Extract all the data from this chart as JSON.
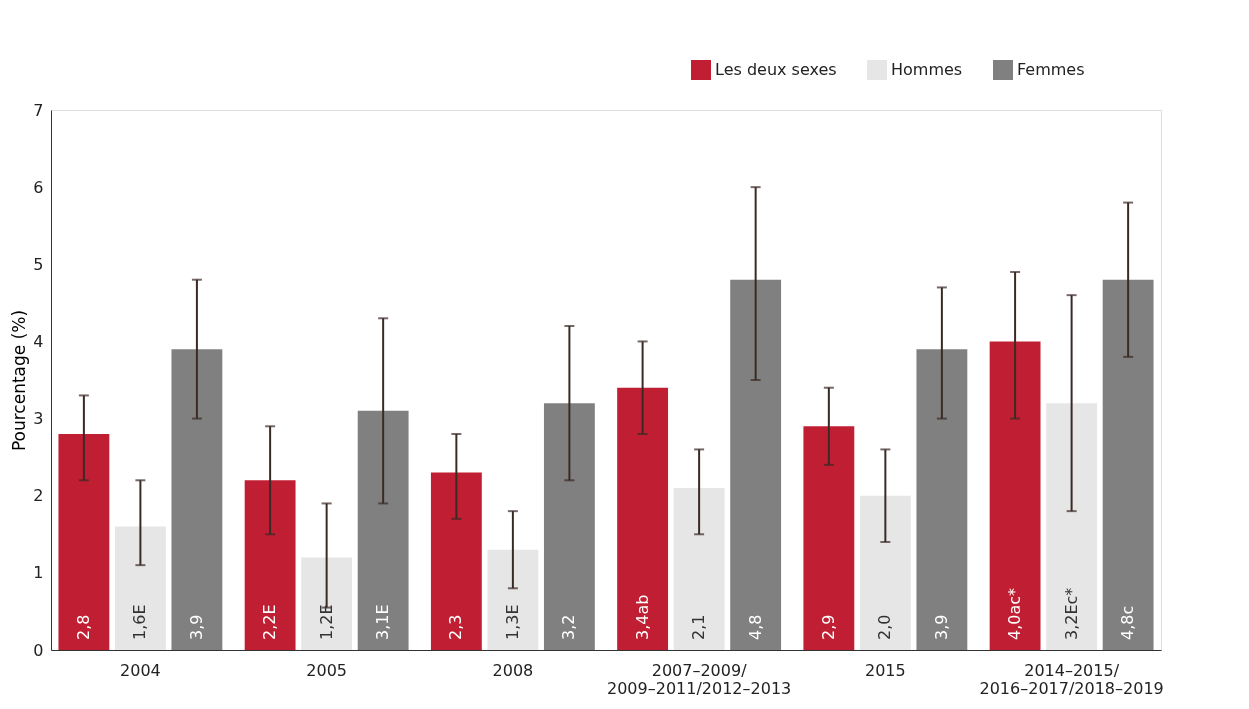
{
  "chart_data": {
    "type": "bar",
    "ylabel": "Pourcentage (%)",
    "categories": [
      "2004",
      "2005",
      "2008",
      "2007–2009/\n2009–2011/2012–2013",
      "2015",
      "2014–2015/\n2016–2017/2018–2019"
    ],
    "series": [
      {
        "name": "Les deux sexes",
        "color": "#c01f33",
        "values": [
          2.8,
          2.2,
          2.3,
          3.4,
          2.9,
          4.0
        ],
        "value_labels": [
          "2,8",
          "2,2E",
          "2,3",
          "3,4ab",
          "2,9",
          "4,0ac*"
        ],
        "errors": [
          [
            2.2,
            3.3
          ],
          [
            1.5,
            2.9
          ],
          [
            1.7,
            2.8
          ],
          [
            2.8,
            4.0
          ],
          [
            2.4,
            3.4
          ],
          [
            3.0,
            4.9
          ]
        ]
      },
      {
        "name": "Hommes",
        "color": "#e6e6e6",
        "values": [
          1.6,
          1.2,
          1.3,
          2.1,
          2.0,
          3.2
        ],
        "value_labels": [
          "1,6E",
          "1,2E",
          "1,3E",
          "2,1",
          "2,0",
          "3,2Ec*"
        ],
        "errors": [
          [
            1.1,
            2.2
          ],
          [
            0.55,
            1.9
          ],
          [
            0.8,
            1.8
          ],
          [
            1.5,
            2.6
          ],
          [
            1.4,
            2.6
          ],
          [
            1.8,
            4.6
          ]
        ]
      },
      {
        "name": "Femmes",
        "color": "#808080",
        "values": [
          3.9,
          3.1,
          3.2,
          4.8,
          3.9,
          4.8
        ],
        "value_labels": [
          "3,9",
          "3,1E",
          "3,2",
          "4,8",
          "3,9",
          "4,8c"
        ],
        "errors": [
          [
            3.0,
            4.8
          ],
          [
            1.9,
            4.3
          ],
          [
            2.2,
            4.2
          ],
          [
            3.5,
            6.0
          ],
          [
            3.0,
            4.7
          ],
          [
            3.8,
            5.8
          ]
        ]
      }
    ],
    "ylim": [
      0,
      7
    ],
    "yticks": [
      0,
      1,
      2,
      3,
      4,
      5,
      6,
      7
    ],
    "grid": false,
    "legend": "top right"
  }
}
